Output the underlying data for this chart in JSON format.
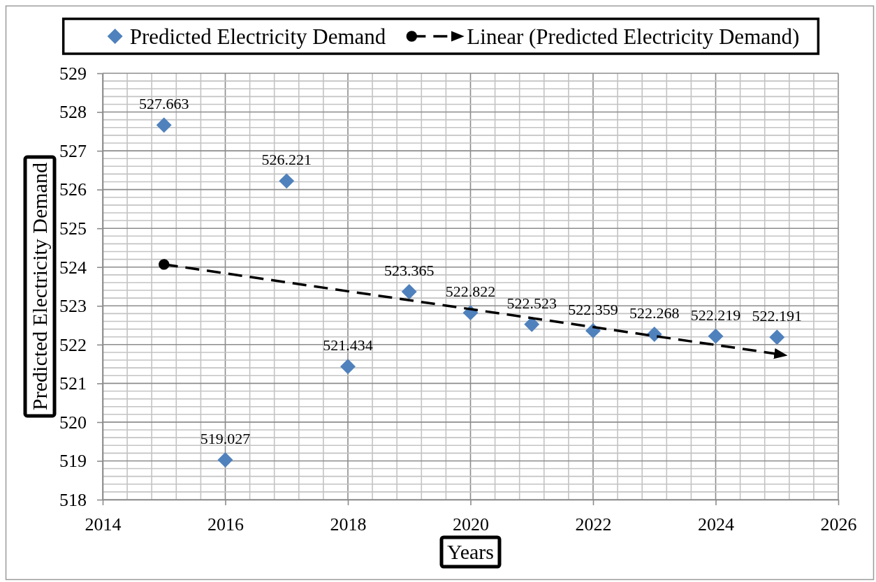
{
  "chart_data": {
    "type": "scatter",
    "xlabel": "Years",
    "ylabel": "Predicted Electricity Demand",
    "x": [
      2015,
      2016,
      2017,
      2018,
      2019,
      2020,
      2021,
      2022,
      2023,
      2024,
      2025
    ],
    "series": [
      {
        "name": "Predicted Electricity Demand",
        "color": "#4f81bd",
        "marker": "diamond",
        "values": [
          527.663,
          519.027,
          526.221,
          521.434,
          523.365,
          522.822,
          522.523,
          522.359,
          522.268,
          522.219,
          522.191
        ],
        "value_labels": [
          "527.663",
          "519.027",
          "526.221",
          "521.434",
          "523.365",
          "522.822",
          "522.523",
          "522.359",
          "522.268",
          "522.219",
          "522.191"
        ]
      },
      {
        "name": "Linear (Predicted Electricity Demand)",
        "type": "line",
        "color": "#000000",
        "x": [
          2015,
          2025
        ],
        "values": [
          524.07,
          521.76
        ]
      }
    ],
    "line_style": "dashed",
    "grid": true,
    "legend": "top",
    "xlim": [
      2014,
      2026
    ],
    "xticks": [
      2014,
      {
        "value": 2014.4,
        "label": null
      },
      {
        "value": 2014.8,
        "label": null
      },
      {
        "value": 2015.2,
        "label": null
      },
      {
        "value": 2015.6,
        "label": null
      },
      2016,
      {
        "value": 2016.4,
        "label": null
      },
      {
        "value": 2016.8,
        "label": null
      },
      {
        "value": 2017.2,
        "label": null
      },
      {
        "value": 2017.6,
        "label": null
      },
      2018,
      {
        "value": 2018.4,
        "label": null
      },
      {
        "value": 2018.8,
        "label": null
      },
      {
        "value": 2019.2,
        "label": null
      },
      {
        "value": 2019.6,
        "label": null
      },
      2020,
      {
        "value": 2020.4,
        "label": null
      },
      {
        "value": 2020.8,
        "label": null
      },
      {
        "value": 2021.2,
        "label": null
      },
      {
        "value": 2021.6,
        "label": null
      },
      2022,
      {
        "value": 2022.4,
        "label": null
      },
      {
        "value": 2022.8,
        "label": null
      },
      {
        "value": 2023.2,
        "label": null
      },
      {
        "value": 2023.6,
        "label": null
      },
      2024,
      {
        "value": 2024.4,
        "label": null
      },
      {
        "value": 2024.8,
        "label": null
      },
      {
        "value": 2025.2,
        "label": null
      },
      {
        "value": 2025.6,
        "label": null
      },
      2026
    ],
    "ylim": [
      518,
      529
    ],
    "yticks": [
      518,
      {
        "value": 518.2,
        "label": null
      },
      {
        "value": 518.4,
        "label": null
      },
      {
        "value": 518.6,
        "label": null
      },
      {
        "value": 518.8,
        "label": null
      },
      519,
      {
        "value": 519.2,
        "label": null
      },
      {
        "value": 519.4,
        "label": null
      },
      {
        "value": 519.6,
        "label": null
      },
      {
        "value": 519.8,
        "label": null
      },
      520,
      {
        "value": 520.2,
        "label": null
      },
      {
        "value": 520.4,
        "label": null
      },
      {
        "value": 520.6,
        "label": null
      },
      {
        "value": 520.8,
        "label": null
      },
      521,
      {
        "value": 521.2,
        "label": null
      },
      {
        "value": 521.4,
        "label": null
      },
      {
        "value": 521.6,
        "label": null
      },
      {
        "value": 521.8,
        "label": null
      },
      522,
      {
        "value": 522.2,
        "label": null
      },
      {
        "value": 522.4,
        "label": null
      },
      {
        "value": 522.6,
        "label": null
      },
      {
        "value": 522.8,
        "label": null
      },
      523,
      {
        "value": 523.2,
        "label": null
      },
      {
        "value": 523.4,
        "label": null
      },
      {
        "value": 523.6,
        "label": null
      },
      {
        "value": 523.8,
        "label": null
      },
      524,
      {
        "value": 524.2,
        "label": null
      },
      {
        "value": 524.4,
        "label": null
      },
      {
        "value": 524.6,
        "label": null
      },
      {
        "value": 524.8,
        "label": null
      },
      525,
      {
        "value": 525.2,
        "label": null
      },
      {
        "value": 525.4,
        "label": null
      },
      {
        "value": 525.6,
        "label": null
      },
      {
        "value": 525.8,
        "label": null
      },
      526,
      {
        "value": 526.2,
        "label": null
      },
      {
        "value": 526.4,
        "label": null
      },
      {
        "value": 526.6,
        "label": null
      },
      {
        "value": 526.8,
        "label": null
      },
      527,
      {
        "value": 527.2,
        "label": null
      },
      {
        "value": 527.4,
        "label": null
      },
      {
        "value": 527.6,
        "label": null
      },
      {
        "value": 527.8,
        "label": null
      },
      528,
      {
        "value": 528.2,
        "label": null
      },
      {
        "value": 528.4,
        "label": null
      },
      {
        "value": 528.6,
        "label": null
      },
      {
        "value": 528.8,
        "label": null
      },
      529
    ]
  }
}
